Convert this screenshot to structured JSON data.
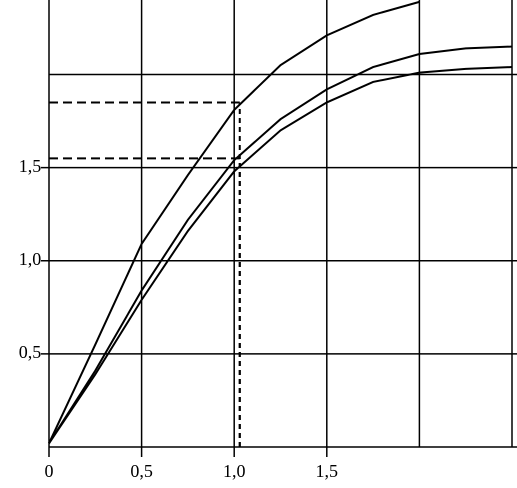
{
  "chart_data": {
    "type": "line",
    "x": [
      0,
      0.25,
      0.5,
      0.75,
      1.0,
      1.25,
      1.5,
      1.75,
      2.0,
      2.25,
      2.5
    ],
    "series": [
      {
        "color": "#000000",
        "values": [
          0.02,
          0.55,
          1.09,
          1.46,
          1.81,
          2.05,
          2.21,
          2.32,
          2.39,
          null,
          null
        ]
      },
      {
        "color": "#000000",
        "values": [
          0.02,
          0.41,
          0.84,
          1.22,
          1.54,
          1.76,
          1.92,
          2.04,
          2.11,
          2.14,
          2.15
        ]
      },
      {
        "color": "#000000",
        "values": [
          0.02,
          0.39,
          0.79,
          1.16,
          1.48,
          1.7,
          1.85,
          1.96,
          2.01,
          2.03,
          2.04
        ]
      }
    ],
    "xlim": [
      0,
      2.5
    ],
    "ylim": [
      0,
      2.4
    ],
    "xticks": [
      0,
      {
        "value": 0.5,
        "label": "0,5"
      },
      {
        "value": 1.0,
        "label": "1,0"
      },
      {
        "value": 1.5,
        "label": "1,5"
      }
    ],
    "yticks": [
      {
        "value": 0.5,
        "label": "0,5"
      },
      {
        "value": 1.0,
        "label": "1,0"
      },
      {
        "value": 1.5,
        "label": "1,5"
      }
    ],
    "xgrid": [
      0.5,
      1.0,
      1.5,
      2.0,
      2.5
    ],
    "ygrid": [
      0.5,
      1.0,
      1.5,
      2.0
    ],
    "ref_lines": [
      {
        "x": 1.03,
        "y": 1.85
      },
      {
        "x": 1.03,
        "y": 1.55
      }
    ]
  }
}
